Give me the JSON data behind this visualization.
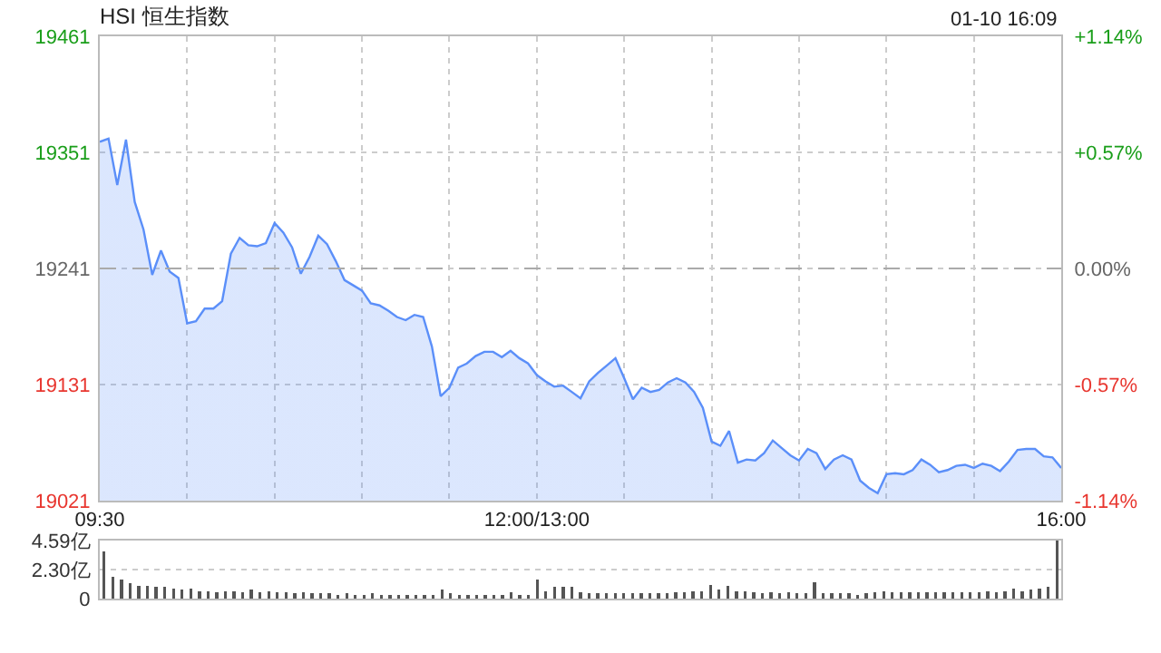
{
  "chart_data": [
    {
      "type": "area",
      "title": "HSI 恒生指数",
      "annotations": [
        "01-10 16:09"
      ],
      "categories": [
        "09:30",
        null,
        null,
        null,
        null,
        null,
        null,
        null,
        null,
        null,
        null,
        null,
        null,
        null,
        null,
        null,
        null,
        null,
        null,
        null,
        null,
        null,
        null,
        null,
        null,
        null,
        null,
        null,
        null,
        null,
        null,
        null,
        null,
        null,
        null,
        null,
        null,
        null,
        null,
        null,
        null,
        null,
        null,
        null,
        null,
        null,
        null,
        null,
        null,
        null,
        "12:00/13:00",
        null,
        null,
        null,
        null,
        null,
        null,
        null,
        null,
        null,
        null,
        null,
        null,
        null,
        null,
        null,
        null,
        null,
        null,
        null,
        null,
        null,
        null,
        null,
        null,
        null,
        null,
        null,
        null,
        null,
        null,
        null,
        null,
        null,
        null,
        null,
        null,
        null,
        null,
        null,
        null,
        null,
        null,
        null,
        null,
        null,
        null,
        null,
        null,
        null,
        null,
        null,
        null,
        null,
        null,
        null,
        null,
        null,
        null,
        null,
        "16:00"
      ],
      "series": [
        {
          "color": "#5b8ff9",
          "values": [
            19361,
            19364,
            19320,
            19363,
            19304,
            19278,
            19235,
            19258,
            19238,
            19232,
            19189,
            19191,
            19203,
            19203,
            19210,
            19255,
            19270,
            19263,
            19262,
            19265,
            19284,
            19275,
            19261,
            19236,
            19252,
            19272,
            19264,
            19248,
            19230,
            19225,
            19220,
            19208,
            19206,
            19201,
            19195,
            19192,
            19197,
            19195,
            19167,
            19120,
            19128,
            19147,
            19151,
            19158,
            19162,
            19162,
            19157,
            19163,
            19156,
            19151,
            19140,
            19134,
            19129,
            19130,
            19124,
            19118,
            19134,
            19142,
            19149,
            19156,
            19137,
            19117,
            19128,
            19124,
            19126,
            19133,
            19137,
            19133,
            19124,
            19109,
            19077,
            19073,
            19087,
            19057,
            19060,
            19059,
            19066,
            19078,
            19071,
            19064,
            19059,
            19070,
            19066,
            19051,
            19060,
            19064,
            19060,
            19040,
            19033,
            19028,
            19046,
            19047,
            19046,
            19050,
            19060,
            19055,
            19048,
            19050,
            19054,
            19055,
            19052,
            19056,
            19054,
            19049,
            19058,
            19069,
            19070,
            19070,
            19063,
            19062,
            19052
          ]
        }
      ],
      "ylim": [
        19021,
        19461
      ],
      "yticks": [
        19021,
        19131,
        19241,
        19351,
        19461
      ],
      "y2lim": [
        -1.14,
        1.14
      ],
      "y2ticks": [
        {
          "value": -1.14,
          "label": "-1.14%"
        },
        {
          "value": -0.57,
          "label": "-0.57%"
        },
        {
          "value": 0,
          "label": "0.00%"
        },
        {
          "value": 0.57,
          "label": "+0.57%"
        },
        {
          "value": 1.14,
          "label": "+1.14%"
        }
      ],
      "ref_lines": [
        {
          "axis": "y",
          "value": 19241,
          "color": "#aaaaaa",
          "line_style": "dashed"
        }
      ],
      "grid": true,
      "marker": "none",
      "line_style": "solid"
    },
    {
      "type": "bar",
      "color": "#555555",
      "categories": [
        null,
        null,
        null,
        null,
        null,
        null,
        null,
        null,
        null,
        null,
        null,
        null,
        null,
        null,
        null,
        null,
        null,
        null,
        null,
        null,
        null,
        null,
        null,
        null,
        null,
        null,
        null,
        null,
        null,
        null,
        null,
        null,
        null,
        null,
        null,
        null,
        null,
        null,
        null,
        null,
        null,
        null,
        null,
        null,
        null,
        null,
        null,
        null,
        null,
        null,
        null,
        null,
        null,
        null,
        null,
        null,
        null,
        null,
        null,
        null,
        null,
        null,
        null,
        null,
        null,
        null,
        null,
        null,
        null,
        null,
        null,
        null,
        null,
        null,
        null,
        null,
        null,
        null,
        null,
        null,
        null,
        null,
        null,
        null,
        null,
        null,
        null,
        null,
        null,
        null,
        null,
        null,
        null,
        null,
        null,
        null,
        null,
        null,
        null,
        null,
        null,
        null,
        null,
        null,
        null,
        null,
        null,
        null,
        null,
        null,
        null
      ],
      "values": [
        3.7,
        1.7,
        1.5,
        1.2,
        1.0,
        1.0,
        0.9,
        0.9,
        0.8,
        0.7,
        0.8,
        0.6,
        0.6,
        0.5,
        0.6,
        0.6,
        0.5,
        0.7,
        0.5,
        0.6,
        0.5,
        0.5,
        0.4,
        0.5,
        0.4,
        0.4,
        0.4,
        0.3,
        0.4,
        0.3,
        0.3,
        0.4,
        0.3,
        0.3,
        0.3,
        0.3,
        0.3,
        0.3,
        0.3,
        0.7,
        0.4,
        0.3,
        0.3,
        0.3,
        0.3,
        0.3,
        0.3,
        0.5,
        0.3,
        0.3,
        1.5,
        0.6,
        0.9,
        0.9,
        0.9,
        0.5,
        0.4,
        0.4,
        0.4,
        0.4,
        0.4,
        0.4,
        0.4,
        0.4,
        0.4,
        0.4,
        0.5,
        0.5,
        0.6,
        0.6,
        1.1,
        0.7,
        1.0,
        0.6,
        0.6,
        0.5,
        0.4,
        0.5,
        0.4,
        0.5,
        0.4,
        0.4,
        1.3,
        0.4,
        0.4,
        0.4,
        0.4,
        0.3,
        0.4,
        0.5,
        0.6,
        0.5,
        0.5,
        0.5,
        0.5,
        0.5,
        0.5,
        0.5,
        0.5,
        0.5,
        0.5,
        0.5,
        0.6,
        0.5,
        0.6,
        0.8,
        0.6,
        0.7,
        0.8,
        0.9,
        4.59
      ],
      "ylim": [
        0,
        4.59
      ],
      "yticks": [
        0,
        {
          "value": 2.3,
          "label": "2.30亿"
        },
        {
          "value": 4.59,
          "label": "4.59亿"
        }
      ],
      "grid": "y",
      "tick_labels": "y"
    }
  ]
}
